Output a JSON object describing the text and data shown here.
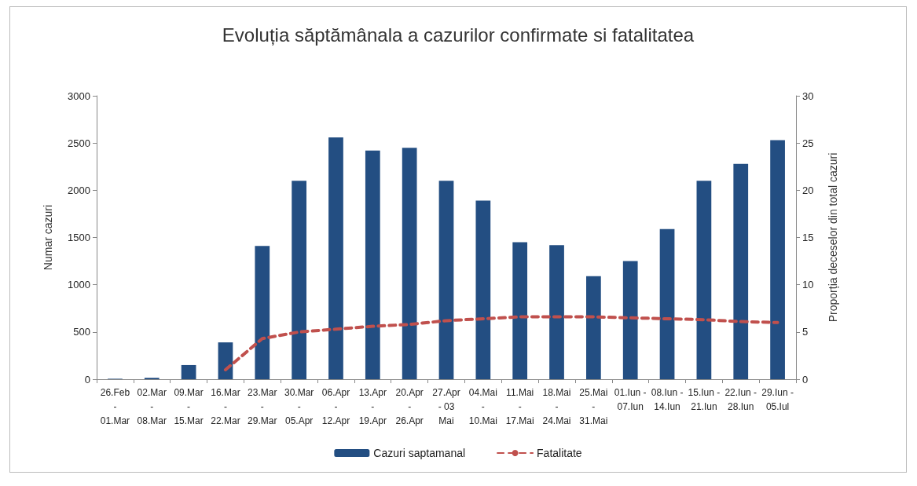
{
  "chart_data": {
    "type": "bar",
    "title": "Evoluția săptămânala a cazurilor confirmate si fatalitatea",
    "categories": [
      "26.Feb\n-\n01.Mar",
      "02.Mar\n-\n08.Mar",
      "09.Mar\n-\n15.Mar",
      "16.Mar\n-\n22.Mar",
      "23.Mar\n-\n29.Mar",
      "30.Mar\n-\n05.Apr",
      "06.Apr\n-\n12.Apr",
      "13.Apr\n-\n19.Apr",
      "20.Apr\n-\n26.Apr",
      "27.Apr\n- 03\nMai",
      "04.Mai\n-\n10.Mai",
      "11.Mai\n-\n17.Mai",
      "18.Mai\n-\n24.Mai",
      "25.Mai\n-\n31.Mai",
      "01.Iun -\n07.Iun",
      "08.Iun -\n14.Iun",
      "15.Iun -\n21.Iun",
      "22.Iun -\n28.Iun",
      "29.Iun -\n05.Iul"
    ],
    "series": [
      {
        "name": "Cazuri saptamanal",
        "color": "#234e82",
        "values": [
          5,
          15,
          150,
          390,
          1410,
          2100,
          2560,
          2420,
          2450,
          2100,
          1890,
          1450,
          1420,
          1090,
          1250,
          1590,
          2100,
          2280,
          2530
        ]
      },
      {
        "name": "Fatalitate",
        "type": "line",
        "axis": "y2",
        "color": "#c0504d",
        "line_style": "dashed",
        "marker": "none",
        "values": [
          null,
          null,
          null,
          1,
          4.3,
          5.0,
          5.3,
          5.6,
          5.8,
          6.2,
          6.4,
          6.6,
          6.6,
          6.6,
          6.5,
          6.4,
          6.3,
          6.1,
          6.0
        ]
      }
    ],
    "ylabel": "Numar cazuri",
    "y2label": "Proporția deceselor din total cazuri",
    "ylim": [
      0,
      3000
    ],
    "yticks": [
      0,
      500,
      1000,
      1500,
      2000,
      2500,
      3000
    ],
    "y2lim": [
      0,
      30
    ],
    "y2ticks": [
      0,
      5,
      10,
      15,
      20,
      25,
      30
    ],
    "grid": false,
    "legend": "bottom"
  }
}
